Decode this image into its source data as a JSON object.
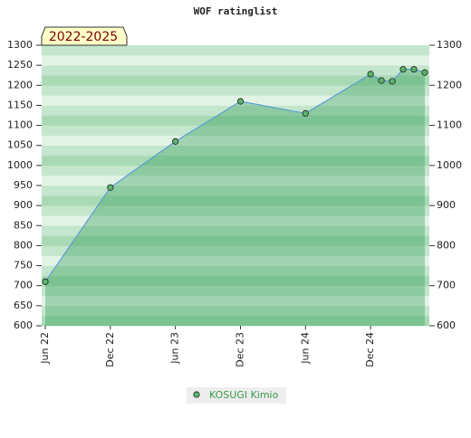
{
  "chart_data": {
    "type": "line",
    "title": "WOF ratinglist",
    "badge": "2022-2025",
    "x": [
      "2022-06",
      "2022-12",
      "2023-06",
      "2023-12",
      "2024-06",
      "2024-12",
      "2025-01",
      "2025-02",
      "2025-03",
      "2025-04",
      "2025-05"
    ],
    "series": [
      {
        "name": "KOSUGI Kimio",
        "color": "#5bb46a",
        "line_color": "#5a9fd4",
        "values": [
          710,
          945,
          1060,
          1160,
          1130,
          1228,
          1212,
          1210,
          1240,
          1240,
          1232
        ]
      }
    ],
    "xlim": [
      "2022-06",
      "2025-05"
    ],
    "xticks": [
      {
        "value": "2022-06",
        "label": "Jun 22"
      },
      {
        "value": "2022-12",
        "label": "Dec 22"
      },
      {
        "value": "2023-06",
        "label": "Jun 23"
      },
      {
        "value": "2023-12",
        "label": "Dec 23"
      },
      {
        "value": "2024-06",
        "label": "Jun 24"
      },
      {
        "value": "2024-12",
        "label": "Dec 24"
      }
    ],
    "ylim": [
      600,
      1300
    ],
    "yticks": [
      600,
      650,
      700,
      750,
      800,
      850,
      900,
      950,
      1000,
      1050,
      1100,
      1150,
      1200,
      1250,
      1300
    ],
    "y2lim": [
      600,
      1300
    ],
    "y2ticks": [
      600,
      700,
      800,
      900,
      1000,
      1100,
      1200,
      1300
    ]
  }
}
